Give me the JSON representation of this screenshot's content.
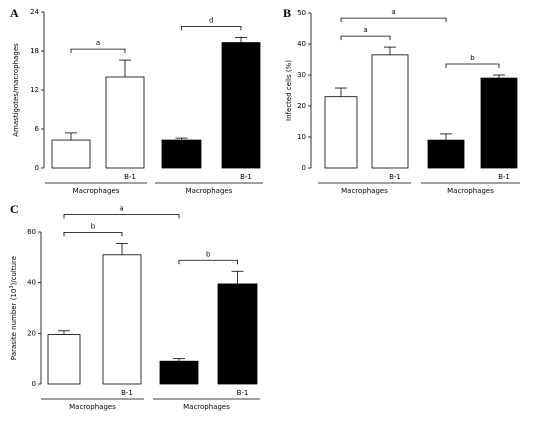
{
  "chart_data": [
    {
      "type": "bar",
      "label": "A",
      "ylabel": "Amastigotes/macrophages",
      "categories": [
        null,
        "B-1",
        null,
        "B-1"
      ],
      "groups": [
        "Macrophages",
        "Macrophages"
      ],
      "values": [
        4.3,
        14.0,
        4.3,
        19.3
      ],
      "errors": [
        1.1,
        2.6,
        0.3,
        0.8
      ],
      "colors": [
        "#ffffff",
        "#ffffff",
        "#000000",
        "#000000"
      ],
      "ylim": [
        0,
        24
      ],
      "yticks": [
        0,
        6,
        12,
        18,
        24
      ],
      "annotations": [
        {
          "text": "a",
          "from": 0,
          "to": 1
        },
        {
          "text": "d",
          "from": 2,
          "to": 3
        }
      ]
    },
    {
      "type": "bar",
      "label": "B",
      "ylabel": "Infected cells (%)",
      "categories": [
        null,
        "B-1",
        null,
        "B-1"
      ],
      "groups": [
        "Macrophages",
        "Macrophages"
      ],
      "values": [
        23,
        36.5,
        9,
        29
      ],
      "errors": [
        2.8,
        2.5,
        2,
        1
      ],
      "colors": [
        "#ffffff",
        "#ffffff",
        "#000000",
        "#000000"
      ],
      "ylim": [
        0,
        50
      ],
      "yticks": [
        0,
        10,
        20,
        30,
        40,
        50
      ],
      "annotations": [
        {
          "text": "a",
          "from": 0,
          "to": 1
        },
        {
          "text": "b",
          "from": 2,
          "to": 3
        },
        {
          "text": "a",
          "from": 0,
          "to": 2
        }
      ]
    },
    {
      "type": "bar",
      "label": "C",
      "ylabel": {
        "text": "Parasite number (10",
        "sup": "3",
        "tail": ")/culture"
      },
      "categories": [
        null,
        "B-1",
        null,
        "B-1"
      ],
      "groups": [
        "Macrophages",
        "Macrophages"
      ],
      "values": [
        19.5,
        51,
        9,
        39.5
      ],
      "errors": [
        1.5,
        4.5,
        1,
        5
      ],
      "colors": [
        "#ffffff",
        "#ffffff",
        "#000000",
        "#000000"
      ],
      "ylim": [
        0,
        60
      ],
      "yticks": [
        0,
        20,
        40,
        60
      ],
      "annotations": [
        {
          "text": "b",
          "from": 0,
          "to": 1
        },
        {
          "text": "b",
          "from": 2,
          "to": 3
        },
        {
          "text": "a",
          "from": 0,
          "to": 2
        }
      ]
    }
  ]
}
